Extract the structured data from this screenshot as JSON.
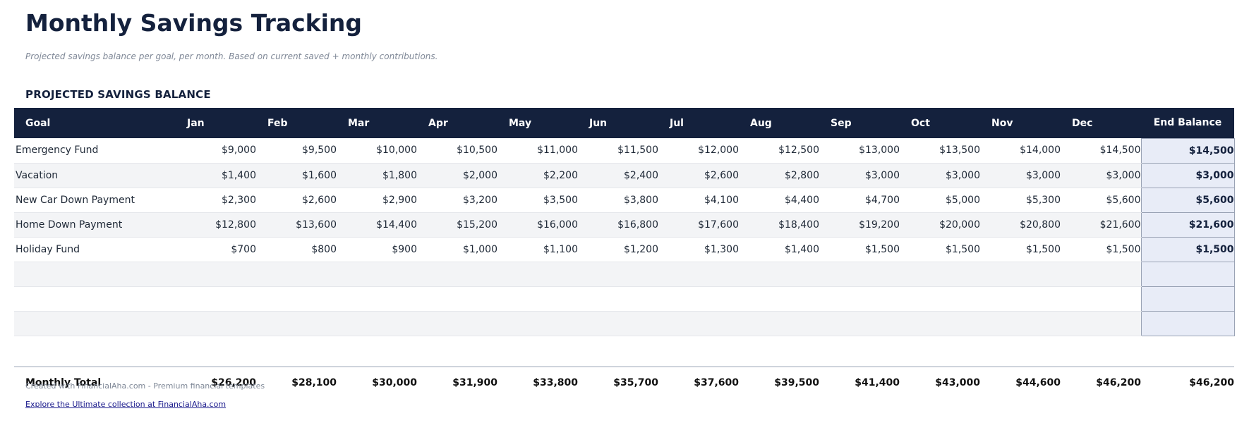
{
  "title": "Monthly Savings Tracking",
  "subtitle": "Projected savings balance per goal, per month. Based on current saved + monthly contributions.",
  "section_title": "PROJECTED SAVINGS BALANCE",
  "table": {
    "headers": [
      "Goal",
      "Jan",
      "Feb",
      "Mar",
      "Apr",
      "May",
      "Jun",
      "Jul",
      "Aug",
      "Sep",
      "Oct",
      "Nov",
      "Dec",
      "End Balance"
    ],
    "rows": [
      [
        "Emergency Fund",
        "$9,000",
        "$9,500",
        "$10,000",
        "$10,500",
        "$11,000",
        "$11,500",
        "$12,000",
        "$12,500",
        "$13,000",
        "$13,500",
        "$14,000",
        "$14,500",
        "$14,500"
      ],
      [
        "Vacation",
        "$1,400",
        "$1,600",
        "$1,800",
        "$2,000",
        "$2,200",
        "$2,400",
        "$2,600",
        "$2,800",
        "$3,000",
        "$3,000",
        "$3,000",
        "$3,000",
        "$3,000"
      ],
      [
        "New Car Down Payment",
        "$2,300",
        "$2,600",
        "$2,900",
        "$3,200",
        "$3,500",
        "$3,800",
        "$4,100",
        "$4,400",
        "$4,700",
        "$5,000",
        "$5,300",
        "$5,600",
        "$5,600"
      ],
      [
        "Home Down Payment",
        "$12,800",
        "$13,600",
        "$14,400",
        "$15,200",
        "$16,000",
        "$16,800",
        "$17,600",
        "$18,400",
        "$19,200",
        "$20,000",
        "$20,800",
        "$21,600",
        "$21,600"
      ],
      [
        "Holiday Fund",
        "$700",
        "$800",
        "$900",
        "$1,000",
        "$1,100",
        "$1,200",
        "$1,300",
        "$1,400",
        "$1,500",
        "$1,500",
        "$1,500",
        "$1,500",
        "$1,500"
      ],
      [
        "",
        "",
        "",
        "",
        "",
        "",
        "",
        "",
        "",
        "",
        "",
        "",
        "",
        ""
      ],
      [
        "",
        "",
        "",
        "",
        "",
        "",
        "",
        "",
        "",
        "",
        "",
        "",
        "",
        ""
      ],
      [
        "",
        "",
        "",
        "",
        "",
        "",
        "",
        "",
        "",
        "",
        "",
        "",
        "",
        ""
      ]
    ],
    "total": [
      "Monthly Total",
      "$26,200",
      "$28,100",
      "$30,000",
      "$31,900",
      "$33,800",
      "$35,700",
      "$37,600",
      "$39,500",
      "$41,400",
      "$43,000",
      "$44,600",
      "$46,200",
      "$46,200"
    ]
  },
  "footer": {
    "credit": "Created with FinancialAha.com - Premium financial templates",
    "link_text": "Explore the Ultimate collection at FinancialAha.com"
  },
  "colors": {
    "header_bg": "#14213d",
    "title": "#14213d",
    "end_balance_bg": "#e8ecf7",
    "stripe": "#f3f4f6"
  }
}
